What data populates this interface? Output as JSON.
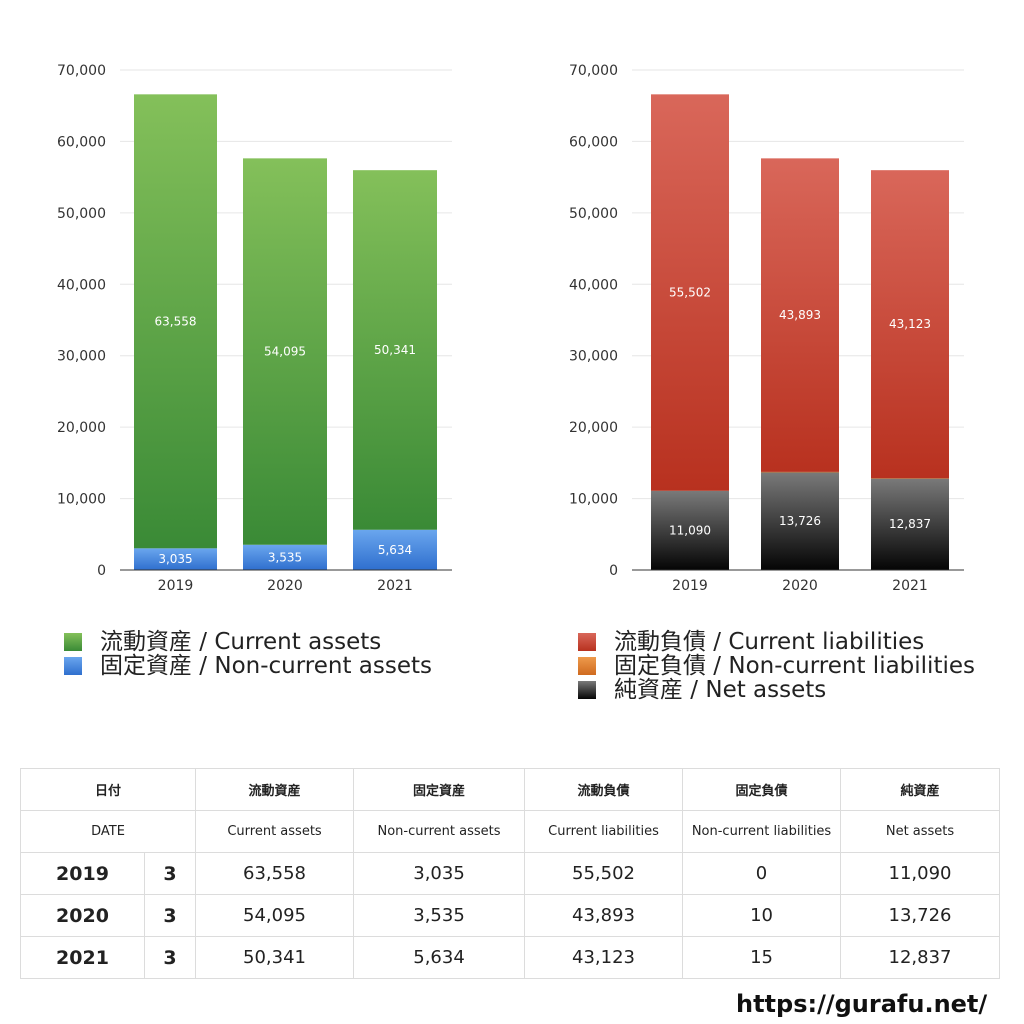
{
  "charts": {
    "left": {
      "y_ticks": [
        "0",
        "10,000",
        "20,000",
        "30,000",
        "40,000",
        "50,000",
        "60,000",
        "70,000"
      ],
      "categories": [
        "2019",
        "2020",
        "2021"
      ],
      "segment_labels": {
        "noncurrent": [
          "3,035",
          "3,535",
          "5,634"
        ],
        "current": [
          "63,558",
          "54,095",
          "50,341"
        ]
      },
      "legend": [
        {
          "label": "流動資産 / Current assets",
          "color": "#5aa637"
        },
        {
          "label": "固定資産 / Non-current assets",
          "color": "#3a7fd8"
        }
      ]
    },
    "right": {
      "y_ticks": [
        "0",
        "10,000",
        "20,000",
        "30,000",
        "40,000",
        "50,000",
        "60,000",
        "70,000"
      ],
      "categories": [
        "2019",
        "2020",
        "2021"
      ],
      "segment_labels": {
        "net": [
          "11,090",
          "13,726",
          "12,837"
        ],
        "noncurrent_liab": [
          "",
          "10",
          "15"
        ],
        "current_liab": [
          "55,502",
          "43,893",
          "43,123"
        ]
      },
      "legend": [
        {
          "label": "流動負債 / Current liabilities",
          "color": "#c0392b"
        },
        {
          "label": "固定負債 / Non-current liabilities",
          "color": "#e07b2a"
        },
        {
          "label": "純資産 / Net assets",
          "color": "#222222"
        }
      ]
    }
  },
  "chart_data": [
    {
      "type": "bar",
      "stacked": true,
      "categories": [
        "2019",
        "2020",
        "2021"
      ],
      "series": [
        {
          "name": "固定資産 / Non-current assets",
          "values": [
            3035,
            3535,
            5634
          ],
          "color": "#3a7fd8"
        },
        {
          "name": "流動資産 / Current assets",
          "values": [
            63558,
            54095,
            50341
          ],
          "color": "#5aa637"
        }
      ],
      "ylim": [
        0,
        70000
      ],
      "grid": true,
      "legend_position": "bottom"
    },
    {
      "type": "bar",
      "stacked": true,
      "categories": [
        "2019",
        "2020",
        "2021"
      ],
      "series": [
        {
          "name": "純資産 / Net assets",
          "values": [
            11090,
            13726,
            12837
          ],
          "color": "#222222"
        },
        {
          "name": "固定負債 / Non-current liabilities",
          "values": [
            0,
            10,
            15
          ],
          "color": "#e07b2a"
        },
        {
          "name": "流動負債 / Current liabilities",
          "values": [
            55502,
            43893,
            43123
          ],
          "color": "#c0392b"
        }
      ],
      "ylim": [
        0,
        70000
      ],
      "grid": true,
      "legend_position": "bottom"
    }
  ],
  "table": {
    "headers_ja": [
      "日付",
      "流動資産",
      "固定資産",
      "流動負債",
      "固定負債",
      "純資産"
    ],
    "headers_en": [
      "DATE",
      "Current assets",
      "Non-current assets",
      "Current liabilities",
      "Non-current liabilities",
      "Net assets"
    ],
    "rows": [
      {
        "year": "2019",
        "month": "3",
        "cells": [
          "63,558",
          "3,035",
          "55,502",
          "0",
          "11,090"
        ]
      },
      {
        "year": "2020",
        "month": "3",
        "cells": [
          "54,095",
          "3,535",
          "43,893",
          "10",
          "13,726"
        ]
      },
      {
        "year": "2021",
        "month": "3",
        "cells": [
          "50,341",
          "5,634",
          "43,123",
          "15",
          "12,837"
        ]
      }
    ]
  },
  "footer": {
    "url": "https://gurafu.net/"
  }
}
